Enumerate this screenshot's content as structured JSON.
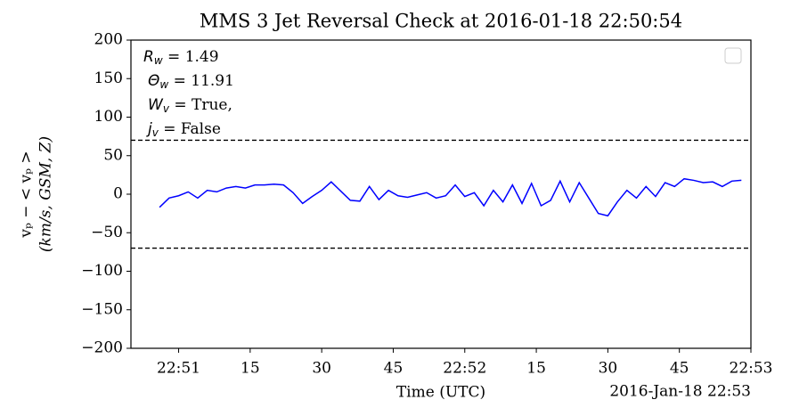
{
  "chart_data": {
    "type": "line",
    "title": "MMS 3 Jet Reversal Check at 2016-01-18 22:50:54",
    "x_label": "Time (UTC)",
    "x_offset_label": "2016-Jan-18 22:53",
    "y_label": [
      "vₚ − < vₚ >",
      "(km/s, GSM, Z)"
    ],
    "annotations": [
      {
        "symbol": "R",
        "sub": "w",
        "text": " = 1.49"
      },
      {
        "symbol": "Θ",
        "sub": "w",
        "text": " = 11.91"
      },
      {
        "symbol": "W",
        "sub": "v",
        "text": " = True,"
      },
      {
        "symbol": "j",
        "sub": "v",
        "text": " = False"
      }
    ],
    "hlines": [
      70,
      -70
    ],
    "xlim": [
      "22:50:50",
      "22:53:00"
    ],
    "xticks": [
      {
        "value": "22:51:00",
        "label": "22:51"
      },
      {
        "value": "22:51:15",
        "label": "15"
      },
      {
        "value": "22:51:30",
        "label": "30"
      },
      {
        "value": "22:51:45",
        "label": "45"
      },
      {
        "value": "22:52:00",
        "label": "22:52"
      },
      {
        "value": "22:52:15",
        "label": "15"
      },
      {
        "value": "22:52:30",
        "label": "30"
      },
      {
        "value": "22:52:45",
        "label": "45"
      },
      {
        "value": "22:53:00",
        "label": "22:53"
      }
    ],
    "ylim": [
      -200,
      200
    ],
    "yticks": [
      {
        "value": -200,
        "label": "−200"
      },
      {
        "value": -150,
        "label": "−150"
      },
      {
        "value": -100,
        "label": "−100"
      },
      {
        "value": -50,
        "label": "−50"
      },
      0,
      50,
      100,
      150,
      200
    ],
    "x": [
      "22:50:56",
      "22:50:58",
      "22:51:00",
      "22:51:02",
      "22:51:04",
      "22:51:06",
      "22:51:08",
      "22:51:10",
      "22:51:12",
      "22:51:14",
      "22:51:16",
      "22:51:18",
      "22:51:20",
      "22:51:22",
      "22:51:24",
      "22:51:26",
      "22:51:28",
      "22:51:30",
      "22:51:32",
      "22:51:34",
      "22:51:36",
      "22:51:38",
      "22:51:40",
      "22:51:42",
      "22:51:44",
      "22:51:46",
      "22:51:48",
      "22:51:50",
      "22:51:52",
      "22:51:54",
      "22:51:56",
      "22:51:58",
      "22:52:00",
      "22:52:02",
      "22:52:04",
      "22:52:06",
      "22:52:08",
      "22:52:10",
      "22:52:12",
      "22:52:14",
      "22:52:16",
      "22:52:18",
      "22:52:20",
      "22:52:22",
      "22:52:24",
      "22:52:26",
      "22:52:28",
      "22:52:30",
      "22:52:32",
      "22:52:34",
      "22:52:36",
      "22:52:38",
      "22:52:40",
      "22:52:42",
      "22:52:44",
      "22:52:46",
      "22:52:48",
      "22:52:50",
      "22:52:52",
      "22:52:54",
      "22:52:56",
      "22:52:58"
    ],
    "series": [
      {
        "color": "#0000ff",
        "values": [
          -17,
          -5,
          -2,
          3,
          -5,
          5,
          3,
          8,
          10,
          8,
          12,
          12,
          13,
          12,
          2,
          -12,
          -3,
          5,
          16,
          4,
          -8,
          -9,
          10,
          -7,
          5,
          -2,
          -4,
          -1,
          2,
          -5,
          -2,
          12,
          -3,
          2,
          -15,
          5,
          -10,
          12,
          -12,
          14,
          -15,
          -8,
          17,
          -10,
          15,
          -5,
          -25,
          -28,
          -10,
          5,
          -5,
          10,
          -3,
          15,
          10,
          20,
          18,
          15,
          16,
          10,
          17,
          18
        ]
      }
    ]
  }
}
